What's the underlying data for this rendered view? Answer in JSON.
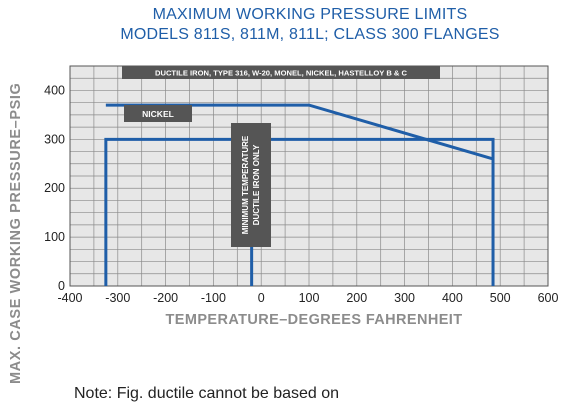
{
  "chart_data": {
    "type": "line",
    "title": "MAXIMUM WORKING PRESSURE LIMITS",
    "subtitle": "MODELS 811S, 811M, 811L; CLASS 300 FLANGES",
    "xlabel": "TEMPERATURE–DEGREES FAHRENHEIT",
    "ylabel": "MAX. CASE WORKING PRESSURE–PSIG",
    "xlim": [
      -400,
      600
    ],
    "ylim": [
      0,
      450
    ],
    "x_ticks": [
      -400,
      -300,
      -200,
      -100,
      0,
      100,
      200,
      300,
      400,
      500,
      600
    ],
    "x_tick_labels": [
      "-400",
      "-300",
      "-200",
      "-100",
      "0",
      "100",
      "200",
      "300",
      "400",
      "500",
      "600"
    ],
    "y_ticks": [
      0,
      100,
      200,
      300,
      400
    ],
    "y_tick_labels": [
      "0",
      "100",
      "200",
      "300",
      "400"
    ],
    "grid": true,
    "series": [
      {
        "name": "DUCTILE IRON, TYPE 316, W-20, MONEL, NICKEL, HASTELLOY B & C",
        "color": "#1f5ea8",
        "points": [
          [
            -325,
            0
          ],
          [
            -325,
            300
          ],
          [
            485,
            300
          ],
          [
            485,
            0
          ]
        ]
      },
      {
        "name": "NICKEL",
        "color": "#1f5ea8",
        "points": [
          [
            -325,
            370
          ],
          [
            100,
            370
          ],
          [
            485,
            260
          ]
        ]
      },
      {
        "name": "MINIMUM TEMPERATURE DUCTILE IRON ONLY",
        "color": "#1f5ea8",
        "points": [
          [
            -20,
            0
          ],
          [
            -20,
            300
          ]
        ]
      }
    ],
    "annotations": [
      {
        "text": "DUCTILE IRON, TYPE 316, W-20, MONEL, NICKEL, HASTELLOY B & C"
      },
      {
        "text": "NICKEL"
      },
      {
        "text": "MINIMUM TEMPERATURE DUCTILE IRON ONLY",
        "lines": [
          "MINIMUM TEMPERATURE",
          "DUCTILE IRON ONLY"
        ]
      }
    ]
  },
  "note_text": "Note: Fig. ductile cannot be based on"
}
